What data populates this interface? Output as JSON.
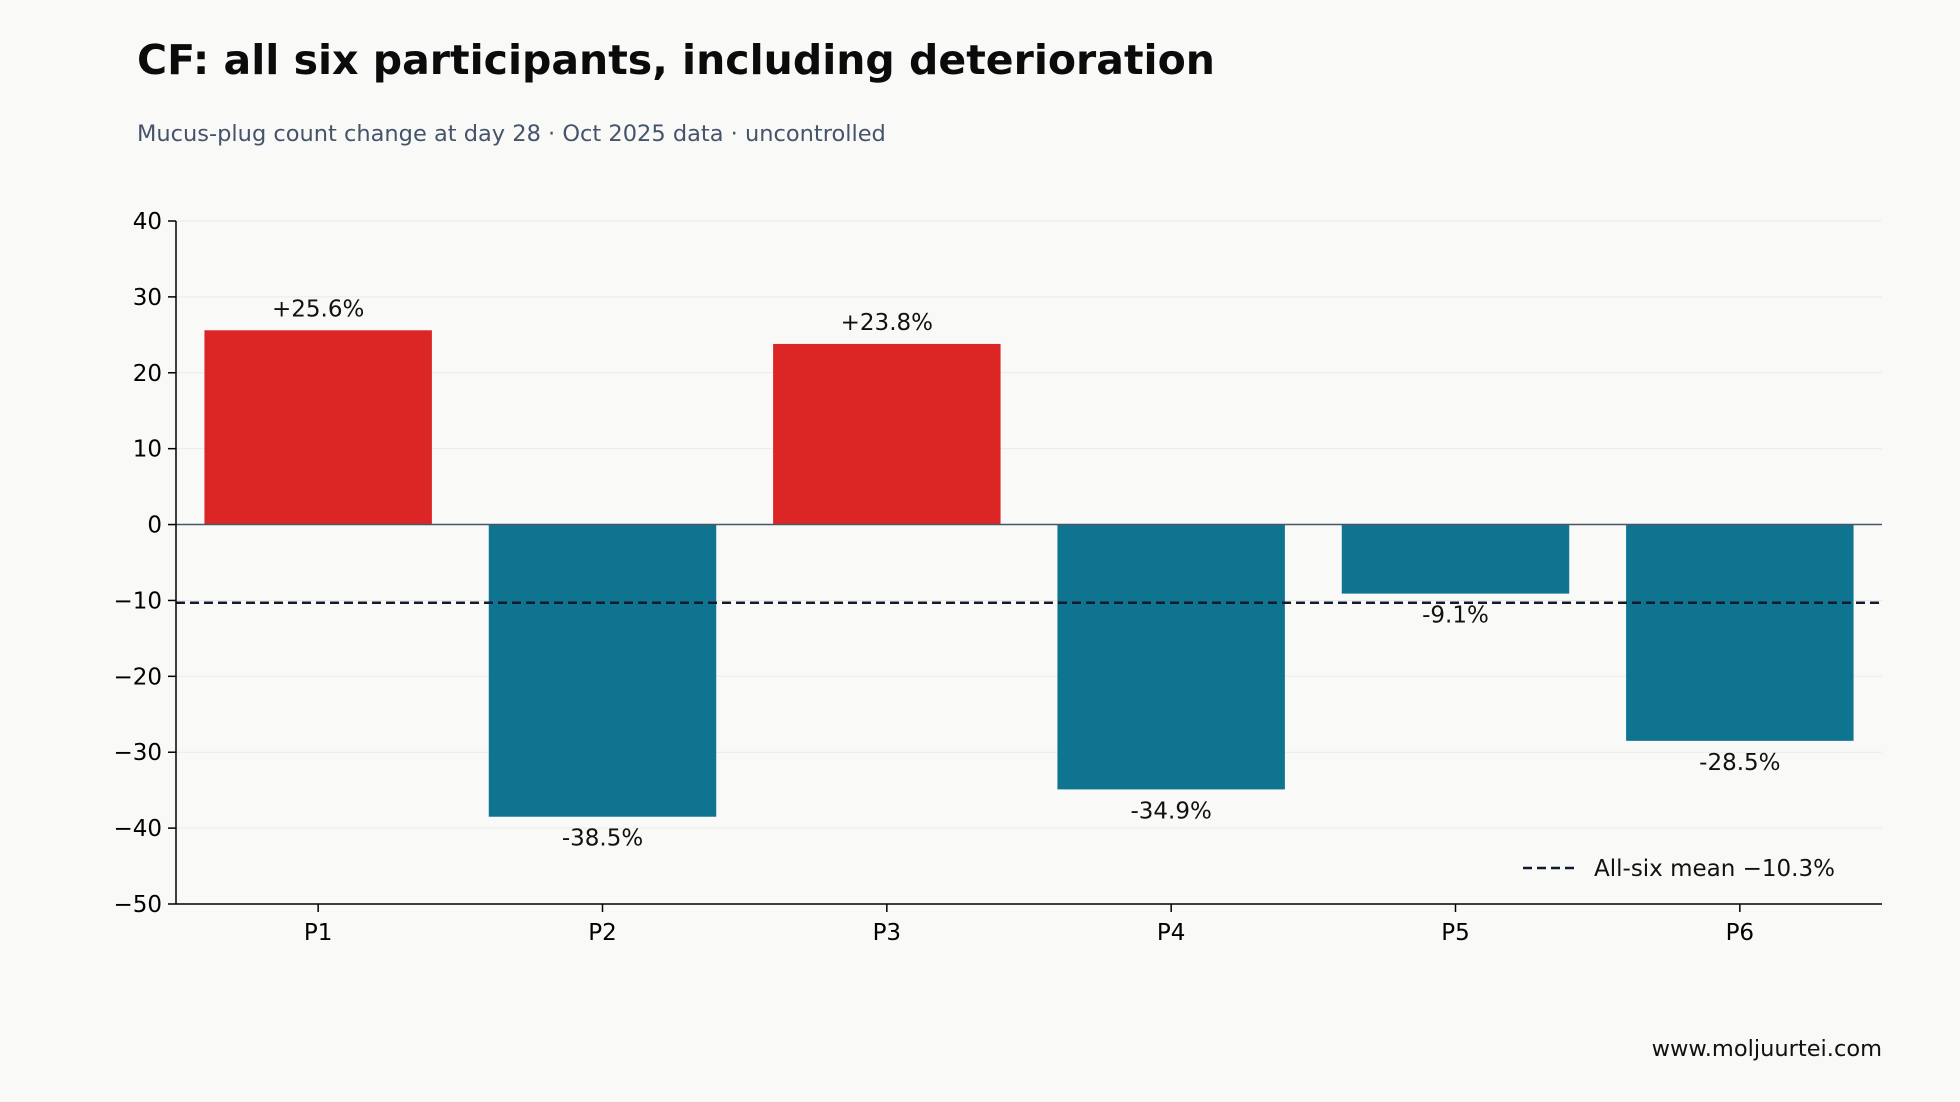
{
  "chart_data": {
    "type": "bar",
    "title": "CF: all six participants, including deterioration",
    "subtitle": "Mucus-plug count change at day 28 · Oct 2025 data · uncontrolled",
    "xlabel": "",
    "ylabel": "",
    "categories": [
      "P1",
      "P2",
      "P3",
      "P4",
      "P5",
      "P6"
    ],
    "values": [
      25.6,
      -38.5,
      23.8,
      -34.9,
      -9.1,
      -28.5
    ],
    "data_labels": [
      "+25.6%",
      "-38.5%",
      "+23.8%",
      "-34.9%",
      "-9.1%",
      "-28.5%"
    ],
    "ylim": [
      -50,
      40
    ],
    "yticks": [
      40,
      30,
      20,
      10,
      0,
      -10,
      -20,
      -30,
      -40,
      -50
    ],
    "ytick_labels": [
      "40",
      "30",
      "20",
      "10",
      "0",
      "−10",
      "−20",
      "−30",
      "−40",
      "−50"
    ],
    "reference_line": {
      "value": -10.3,
      "style": "dashed",
      "label": "All-six mean −10.3%"
    },
    "grid": true,
    "legend_position": "bottom-right",
    "colors": {
      "increase": "#dc2626",
      "decrease": "#0f7490",
      "reference_line": "#111a2e",
      "zero_line": "#4a5568",
      "grid": "#ebebe8",
      "background": "#f9f9f7"
    }
  },
  "footer": {
    "source": "www.moljuurtei.com"
  }
}
